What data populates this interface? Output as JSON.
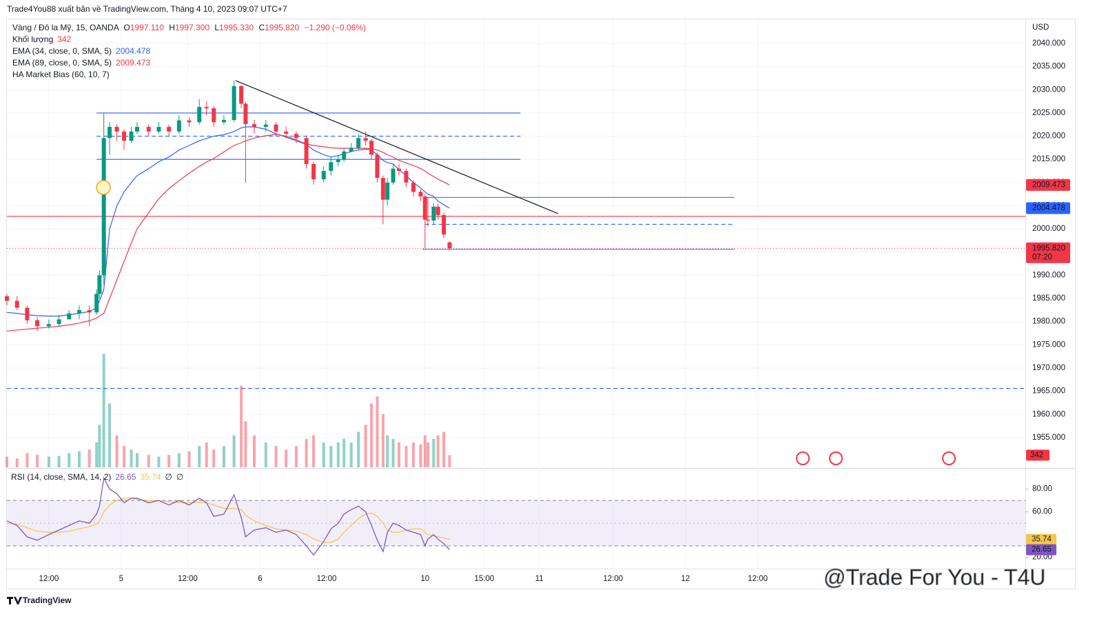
{
  "chart_data": {
    "type": "candlestick",
    "title": "Trade4You88 xuất bản về TradingView.com, Tháng 4 10, 2023 09:07 UTC+7",
    "symbol": "Vàng / Đô la Mỹ, 15, OANDA",
    "ohlc_legend": [
      "O",
      "1997.110",
      "H",
      "1997.300",
      "L",
      "1995.330",
      "C",
      "1995.820",
      "−1.290 (−0.06%)"
    ],
    "indicators": [
      {
        "name": "Khối lượng",
        "value_label": "342",
        "color": "#f23645"
      },
      {
        "name": "EMA (34, close, 0, SMA, 5)",
        "value_label": "2004.478",
        "color": "#2962ff"
      },
      {
        "name": "EMA (89, close, 0, SMA, 5)",
        "value_label": "2009.473",
        "color": "#f23645"
      },
      {
        "name": "HA Market Bias (60, 10, 7)"
      }
    ],
    "currency": "USD",
    "up_color": "#089981",
    "down_color": "#f23645",
    "xlim": [
      0,
      704
    ],
    "ylim": [
      1948.6,
      2045.2
    ],
    "xticks": [
      {
        "value": 29,
        "label": "12:00"
      },
      {
        "value": 79,
        "label": "5"
      },
      {
        "value": 125,
        "label": "12:00"
      },
      {
        "value": 175,
        "label": "6"
      },
      {
        "value": 221,
        "label": "12:00"
      },
      {
        "value": 289,
        "label": "10"
      },
      {
        "value": 330,
        "label": "15:00"
      },
      {
        "value": 368,
        "label": "11"
      },
      {
        "value": 419,
        "label": "12:00"
      },
      {
        "value": 469,
        "label": "12"
      },
      {
        "value": 519,
        "label": "12:00"
      }
    ],
    "yticks": [
      {
        "value": 1955,
        "label": "1955.000"
      },
      {
        "value": 1960,
        "label": "1960.000"
      },
      {
        "value": 1965,
        "label": "1965.000"
      },
      {
        "value": 1970,
        "label": "1970.000"
      },
      {
        "value": 1975,
        "label": "1975.000"
      },
      {
        "value": 1980,
        "label": "1980.000"
      },
      {
        "value": 1985,
        "label": "1985.000"
      },
      {
        "value": 1990,
        "label": "1990.000"
      },
      {
        "value": 1995,
        "label": "1995.000"
      },
      {
        "value": 2000,
        "label": "2000.000"
      },
      {
        "value": 2005,
        "label": "2005.000"
      },
      {
        "value": 2010,
        "label": "2010.000"
      },
      {
        "value": 2015,
        "label": "2015.000"
      },
      {
        "value": 2020,
        "label": "2020.000"
      },
      {
        "value": 2025,
        "label": "2025.000"
      },
      {
        "value": 2030,
        "label": "2030.000"
      },
      {
        "value": 2035,
        "label": "2035.000"
      },
      {
        "value": 2040,
        "label": "2040.000"
      }
    ],
    "grid": true,
    "x": [
      0,
      7,
      14,
      21,
      29,
      36,
      43,
      50,
      57,
      62,
      64,
      67,
      71,
      76,
      81,
      86,
      90,
      98,
      105,
      112,
      119,
      126,
      133,
      138,
      143,
      150,
      157,
      162,
      165,
      171,
      179,
      186,
      193,
      200,
      207,
      212,
      219,
      224,
      229,
      233,
      238,
      243,
      248,
      252,
      256,
      260,
      263,
      267,
      271,
      276,
      281,
      286,
      289,
      291,
      295,
      298,
      302,
      306
    ],
    "open": [
      1985.5,
      1984.5,
      1983,
      1980.3,
      1979,
      1979.5,
      1980.5,
      1981.8,
      1982.5,
      1982,
      1986,
      1990,
      2019.6,
      2022,
      2021,
      2019,
      2021,
      2022,
      2021,
      2022,
      2021,
      2023.4,
      2023,
      2026.3,
      2026,
      2023,
      2023.5,
      2030.8,
      2027,
      2022.6,
      2022,
      2022.5,
      2021,
      2020.5,
      2019.6,
      2014,
      2010.7,
      2012.5,
      2014.4,
      2015,
      2016.7,
      2017.5,
      2019.6,
      2019,
      2016,
      2011,
      2006.3,
      2010,
      2013,
      2012.5,
      2010,
      2008,
      2007,
      2002,
      2001.8,
      2004.8,
      2003,
      1997.11
    ],
    "high": [
      1986,
      1985.5,
      1983.5,
      1981,
      1980.5,
      1981.5,
      1982.5,
      1983.5,
      1983.5,
      1987,
      1991,
      2025,
      2023,
      2022.5,
      2021.5,
      2022,
      2023,
      2022.5,
      2023,
      2022.5,
      2024.5,
      2024,
      2028,
      2027.5,
      2026.5,
      2024.5,
      2032,
      2031,
      2027.5,
      2023.5,
      2023.5,
      2023,
      2022,
      2021,
      2020,
      2014.5,
      2013.5,
      2015.5,
      2016,
      2017.5,
      2018.5,
      2020.5,
      2021,
      2019.5,
      2016.5,
      2011.5,
      2011,
      2014,
      2014,
      2013,
      2010.5,
      2008.5,
      2007.5,
      2006.8,
      2005.5,
      2005.5,
      2003.5,
      1997.3
    ],
    "low": [
      1983.5,
      1982.5,
      1979.5,
      1978,
      1978.5,
      1979,
      1980.5,
      1980.5,
      1979,
      1981.5,
      1985,
      1988,
      2016,
      2019,
      2017,
      2018.5,
      2020.5,
      2020,
      2020.5,
      2020,
      2020.5,
      2022,
      2022.5,
      2024.5,
      2022,
      2022.5,
      2023,
      2026,
      2010,
      2020.5,
      2021,
      2020,
      2019.5,
      2018.5,
      2013,
      2009.5,
      2010,
      2011.5,
      2013.5,
      2014.5,
      2016.5,
      2017,
      2018,
      2015,
      2010,
      2001,
      2005,
      2009.5,
      2011.5,
      2009,
      2007,
      2006,
      1995.8,
      2000.5,
      2001,
      2002,
      1998,
      1995.33
    ],
    "close": [
      1984.5,
      1983,
      1980.3,
      1979,
      1979.5,
      1980.5,
      1981.8,
      1982.5,
      1982,
      1986,
      1990,
      2019.6,
      2022,
      2021,
      2019,
      2021,
      2022,
      2021,
      2022,
      2021,
      2023.4,
      2023,
      2026.3,
      2026,
      2023,
      2023.5,
      2030.8,
      2027,
      2022.6,
      2022,
      2022.5,
      2021,
      2020.5,
      2019.6,
      2014,
      2010.7,
      2012.5,
      2014.4,
      2015,
      2016.7,
      2017.5,
      2019.6,
      2019,
      2016,
      2011,
      2006.3,
      2010,
      2013,
      2012.5,
      2010,
      2008,
      2007,
      2002,
      2001.8,
      2004.8,
      2003,
      1998.8,
      1995.82
    ],
    "ema": [
      {
        "name": "EMA 34",
        "color": "#2962ff",
        "values": [
          1982,
          1981.8,
          1981.5,
          1981.3,
          1981.2,
          1981.2,
          1981.5,
          1981.8,
          1982.2,
          1983,
          1984.5,
          1987,
          2000,
          2005,
          2008,
          2010,
          2011.5,
          2013,
          2014.5,
          2015.5,
          2017,
          2018,
          2019,
          2019.5,
          2020,
          2020.3,
          2021,
          2021.8,
          2022,
          2022,
          2021.5,
          2020.5,
          2019.8,
          2019,
          2018.2,
          2017,
          2016,
          2015.5,
          2015.8,
          2016.2,
          2016.7,
          2017,
          2017.2,
          2017,
          2016,
          2014.8,
          2014.3,
          2014,
          2012.8,
          2011.5,
          2010,
          2008.8,
          2008,
          2007.5,
          2007,
          2006,
          2005.2,
          2004.478
        ]
      },
      {
        "name": "EMA 89",
        "color": "#f23645",
        "values": [
          1978,
          1978.2,
          1978.4,
          1978.6,
          1978.8,
          1979,
          1979.3,
          1979.7,
          1980.2,
          1980.8,
          1981.2,
          1981.8,
          1985,
          1989,
          1993,
          1997,
          2000,
          2003.5,
          2006.5,
          2008.7,
          2010.4,
          2012,
          2013.5,
          2014.4,
          2015.2,
          2016.6,
          2018,
          2018.6,
          2019,
          2019.6,
          2020.1,
          2020.4,
          2020,
          2019.2,
          2018.3,
          2018,
          2017.7,
          2017.5,
          2017.4,
          2017.4,
          2017.4,
          2017.4,
          2017.4,
          2017.3,
          2017,
          2016.5,
          2016,
          2015.5,
          2014.8,
          2014.2,
          2013.7,
          2013,
          2012.5,
          2012,
          2011.3,
          2010.7,
          2010.1,
          2009.473
        ]
      }
    ],
    "volume": {
      "vlim": [
        0,
        3400
      ],
      "values": [
        300,
        250,
        400,
        350,
        300,
        320,
        400,
        450,
        500,
        700,
        1200,
        3200,
        1800,
        900,
        600,
        500,
        400,
        350,
        300,
        350,
        400,
        450,
        600,
        700,
        500,
        600,
        900,
        2300,
        1300,
        900,
        700,
        600,
        500,
        600,
        800,
        900,
        700,
        600,
        700,
        800,
        700,
        1000,
        1200,
        1800,
        2000,
        1500,
        900,
        800,
        700,
        600,
        700,
        650,
        900,
        700,
        800,
        900,
        1000,
        342
      ],
      "last_label": "342"
    },
    "levels": [
      {
        "price": 2025,
        "x": [
          62,
          355
        ],
        "color": "#2962ff",
        "style": "solid"
      },
      {
        "price": 2020,
        "x": [
          62,
          355
        ],
        "color": "#2962ff",
        "style": "dashed"
      },
      {
        "price": 2015,
        "x": [
          62,
          355
        ],
        "color": "#2962ff",
        "style": "solid"
      },
      {
        "price": 2006.8,
        "x": [
          289,
          503
        ],
        "color": "#2962ff",
        "style": "solid"
      },
      {
        "price": 2001,
        "x": [
          289,
          503
        ],
        "color": "#2962ff",
        "style": "dashed"
      },
      {
        "price": 1995.6,
        "x": [
          287,
          503
        ],
        "color": "#2962ff",
        "style": "solid"
      },
      {
        "price": 2002.7,
        "x": [
          0,
          704
        ],
        "color": "#f23645",
        "style": "solid"
      },
      {
        "price": 1965.6,
        "x": [
          0,
          704
        ],
        "color": "#2962ff",
        "style": "dashed"
      },
      {
        "price": 1995.82,
        "x": [
          0,
          704
        ],
        "color": "#f23645",
        "style": "dotted"
      }
    ],
    "trendline": {
      "x": [
        158,
        381
      ],
      "y": [
        2032,
        2003.3
      ],
      "color": "#131722"
    },
    "price_labels": [
      {
        "value": 2009.473,
        "label": "2009.473",
        "color": "#f23645"
      },
      {
        "value": 2004.478,
        "label": "2004.478",
        "color": "#2962ff"
      },
      {
        "value": 1995.82,
        "label": "1995.820",
        "sub": "07:20",
        "color": "#f23645"
      }
    ],
    "rsi": {
      "legend": "RSI (14, close, SMA, 14, 2)",
      "value_label": "26.65",
      "ma_label": "35.74",
      "extra": [
        "∅",
        "∅"
      ],
      "ylim": [
        10,
        98
      ],
      "yticks": [
        {
          "value": 20,
          "label": "20.00"
        },
        {
          "value": 60,
          "label": "60.00"
        },
        {
          "value": 80,
          "label": "80.00"
        }
      ],
      "bands": [
        70,
        50,
        30
      ],
      "color": "#7e57c2",
      "ma_color": "#f5c84c",
      "values": [
        52,
        48,
        38,
        35,
        40,
        44,
        48,
        52,
        50,
        58,
        65,
        90,
        80,
        76,
        68,
        72,
        72,
        68,
        70,
        66,
        70,
        66,
        72,
        68,
        56,
        58,
        75,
        55,
        38,
        44,
        46,
        42,
        44,
        40,
        30,
        22,
        34,
        45,
        50,
        58,
        62,
        65,
        60,
        48,
        35,
        25,
        42,
        50,
        48,
        44,
        42,
        40,
        30,
        36,
        40,
        36,
        32,
        26.65
      ],
      "ma": [
        50,
        49,
        46,
        43,
        42,
        42,
        43,
        45,
        47,
        49,
        52,
        60,
        66,
        70,
        72,
        72,
        71,
        70,
        70,
        69,
        68,
        68,
        68,
        68,
        66,
        63,
        63,
        62,
        57,
        52,
        48,
        45,
        44,
        43,
        40,
        36,
        33,
        33,
        36,
        42,
        48,
        54,
        58,
        59,
        56,
        50,
        44,
        42,
        42,
        44,
        45,
        45,
        42,
        40,
        39,
        38,
        37,
        35.74
      ],
      "last": {
        "value": 26.65,
        "ma": 35.74
      }
    },
    "watermark": "@Trade For You - T4U",
    "brand": "TradingView"
  }
}
